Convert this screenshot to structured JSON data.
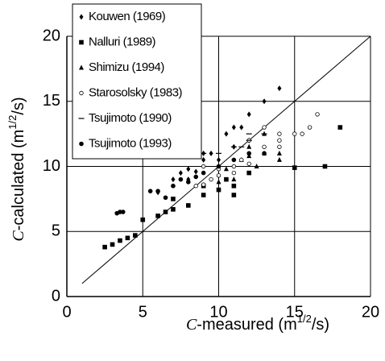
{
  "chart_data": {
    "type": "scatter",
    "x_label": [
      "C",
      "-measured (m",
      "1/2",
      "/s)"
    ],
    "y_label": [
      "C",
      "-calculated (m",
      "1/2",
      "/s)"
    ],
    "xlim": [
      0,
      20
    ],
    "ylim": [
      0,
      20
    ],
    "xticks": [
      0,
      5,
      10,
      15,
      20
    ],
    "yticks": [
      0,
      5,
      10,
      15,
      20
    ],
    "grid": true,
    "legend": "upper left",
    "reference_line": [
      [
        1,
        1
      ],
      [
        20,
        20
      ]
    ],
    "series": [
      {
        "name": "Kouwen (1969)",
        "marker": "diamond",
        "color": "#000000",
        "x": [
          6,
          7,
          7.5,
          8,
          8,
          8.5,
          9,
          9,
          9.5,
          10,
          10.5,
          11,
          11,
          11.5,
          12,
          12,
          13,
          14
        ],
        "y": [
          8,
          9,
          9.5,
          9,
          9.8,
          9.6,
          10.5,
          11,
          11,
          10.5,
          12.5,
          13,
          11.5,
          13,
          14,
          12,
          15,
          16
        ]
      },
      {
        "name": "Nalluri (1989)",
        "marker": "square",
        "color": "#000000",
        "x": [
          2.5,
          3,
          3.5,
          4,
          4.5,
          5,
          6,
          6.5,
          7,
          7,
          8,
          9,
          9,
          10,
          10.5,
          11,
          11,
          12,
          15,
          17,
          18
        ],
        "y": [
          3.8,
          4,
          4.3,
          4.5,
          4.7,
          5.9,
          6.2,
          6.5,
          6.7,
          7.5,
          7,
          7.8,
          8.5,
          8.2,
          9,
          7.8,
          8.5,
          9.5,
          9.9,
          10,
          13
        ]
      },
      {
        "name": "Shimizu (1994)",
        "marker": "triangle",
        "color": "#000000",
        "x": [
          10,
          10.5,
          11,
          11.5,
          12,
          12,
          12.5,
          13,
          13,
          14,
          14
        ],
        "y": [
          8.8,
          9.8,
          9,
          10.5,
          11.5,
          10.8,
          10,
          11,
          12.5,
          11,
          10.5
        ]
      },
      {
        "name": "Starosolsky (1983)",
        "marker": "open-circle",
        "color": "#000000",
        "x": [
          8.5,
          9,
          9,
          9.5,
          10,
          10,
          11,
          11,
          11.5,
          12,
          12,
          13,
          13,
          14,
          14,
          14,
          15,
          15.5,
          16,
          16.5
        ],
        "y": [
          8.5,
          8.6,
          10,
          9,
          9.3,
          9.8,
          10,
          9.5,
          10.5,
          10.2,
          12,
          11.5,
          13,
          12,
          11.5,
          12.5,
          12.5,
          12.5,
          13,
          14
        ]
      },
      {
        "name": "Tsujimoto (1990)",
        "marker": "dash",
        "color": "#000000",
        "x": [
          9,
          10,
          11,
          11.5,
          12,
          12,
          13
        ],
        "y": [
          11,
          11,
          11.5,
          11.5,
          12,
          12.5,
          12.5
        ]
      },
      {
        "name": "Tsujimoto (1993)",
        "marker": "circle",
        "color": "#000000",
        "x": [
          3.3,
          3.5,
          3.7,
          5.5,
          6,
          6.5,
          7,
          7.5,
          8,
          8.5,
          9,
          10,
          11,
          12,
          13
        ],
        "y": [
          6.4,
          6.5,
          6.5,
          8.1,
          8.1,
          7.6,
          8.5,
          9,
          8.8,
          9.2,
          9.5,
          10,
          10.5,
          11,
          11
        ]
      }
    ]
  }
}
